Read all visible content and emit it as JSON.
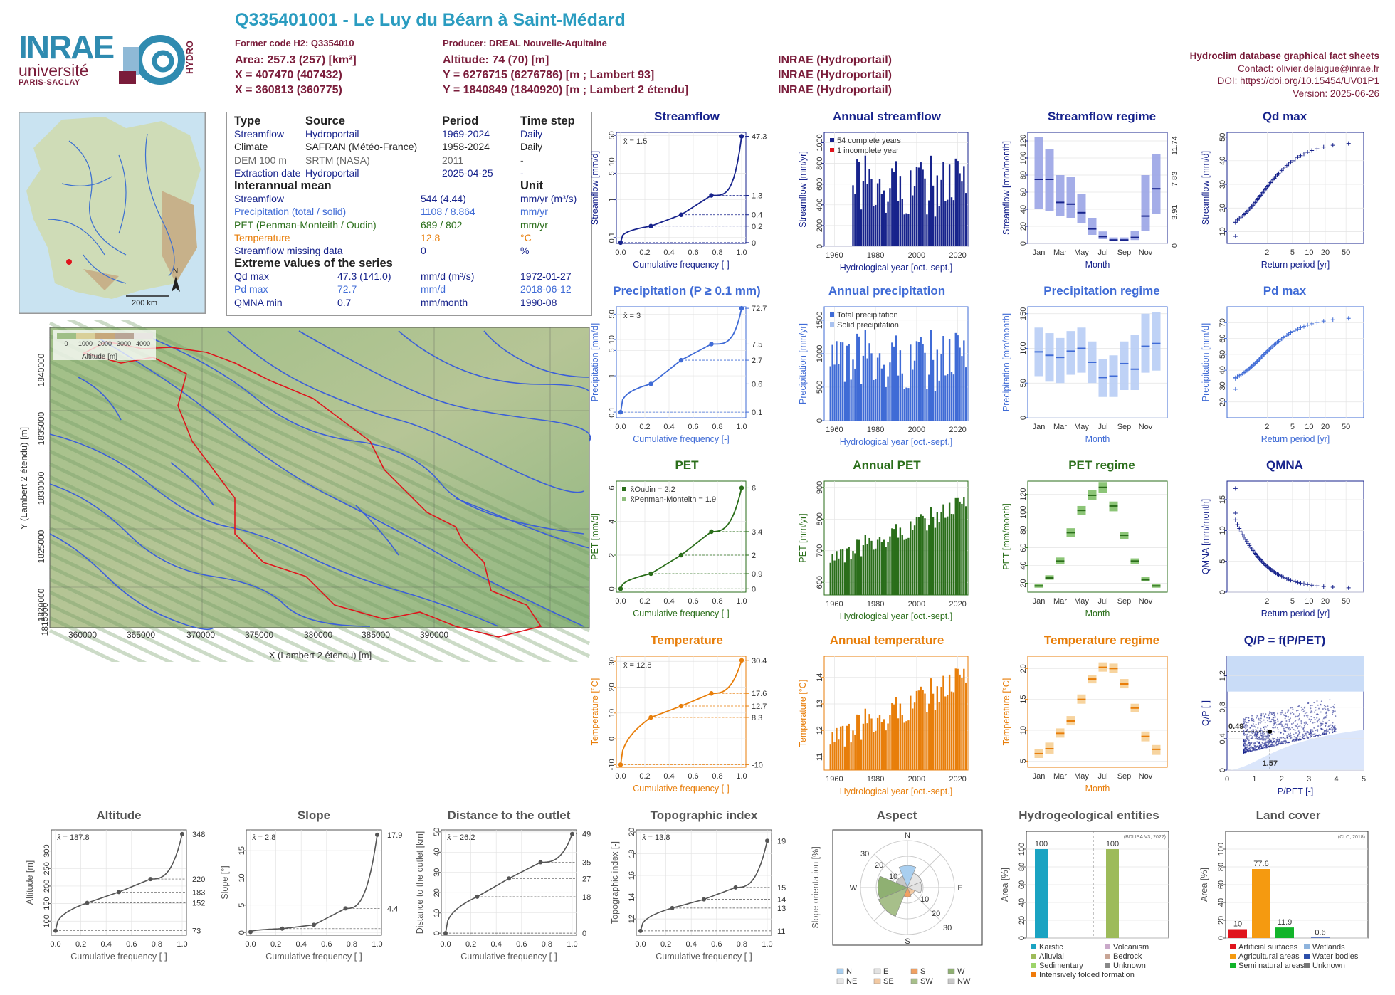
{
  "header": {
    "title": "Q335401001 - Le Luy du Béarn à Saint-Médard",
    "former_code": "Former code H2: Q3354010",
    "producer": "Producer: DREAL Nouvelle-Aquitaine",
    "area": "Area: 257.3 (257) [km²]",
    "x93": "X = 407470 (407432)",
    "x2e": "X = 360813 (360775)",
    "altitude": "Altitude: 74 (70) [m]",
    "y93": "Y = 6276715 (6276786) [m ; Lambert 93]",
    "y2e": "Y = 1840849 (1840920) [m ; Lambert 2 étendu]",
    "src1": "INRAE (Hydroportail)",
    "src2": "INRAE (Hydroportail)",
    "src3": "INRAE (Hydroportail)",
    "right1": "Hydroclim database graphical fact sheets",
    "right2": "Contact: olivier.delaigue@inrae.fr",
    "right3": "DOI: https://doi.org/10.15454/UV01P1",
    "right4": "Version: 2025-06-26"
  },
  "logo": {
    "inrae": "INRAE",
    "univ": "université",
    "ps": "PARIS-SACLAY",
    "hydro": "HYDRO"
  },
  "info_table": {
    "head": [
      "Type",
      "Source",
      "Period",
      "Time step"
    ],
    "rows": [
      [
        "Streamflow",
        "Hydroportail",
        "1969-2024",
        "Daily"
      ],
      [
        "Climate",
        "SAFRAN (Météo-France)",
        "1958-2024",
        "Daily"
      ],
      [
        "DEM 100 m",
        "SRTM (NASA)",
        "2011",
        "-"
      ],
      [
        "Extraction date",
        "Hydroportail",
        "2025-04-25",
        "-"
      ]
    ],
    "mean_head": "Interannual mean",
    "unit_head": "Unit",
    "means": [
      [
        "Streamflow",
        "544 (4.44)",
        "mm/yr (m³/s)"
      ],
      [
        "Precipitation (total / solid)",
        "1108 / 8.864",
        "mm/yr"
      ],
      [
        "PET (Penman-Monteith / Oudin)",
        "689 / 802",
        "mm/yr"
      ],
      [
        "Temperature",
        "12.8",
        "°C"
      ],
      [
        "Streamflow missing data",
        "0",
        "%"
      ]
    ],
    "extreme_head": "Extreme values of the series",
    "extremes": [
      [
        "Qd max",
        "47.3 (141.0)",
        "mm/d (m³/s)",
        "1972-01-27"
      ],
      [
        "Pd max",
        "72.7",
        "mm/d",
        "2018-06-12"
      ],
      [
        "QMNA min",
        "0.7",
        "mm/month",
        "1990-08"
      ]
    ]
  },
  "map": {
    "scale": "200 km",
    "north": "N",
    "legend_title": "Altitude [m]",
    "legend_ticks": [
      "0",
      "1000",
      "2000",
      "3000",
      "4000"
    ],
    "xlabel": "X (Lambert 2 étendu) [m]",
    "ylabel": "Y (Lambert 2 étendu) [m]",
    "xticks": [
      "360000",
      "365000",
      "370000",
      "375000",
      "380000",
      "385000",
      "390000"
    ],
    "yticks": [
      "1840000",
      "1835000",
      "1830000",
      "1825000",
      "1820000",
      "1815000"
    ]
  },
  "chart_data": [
    {
      "id": "q_cdf",
      "type": "line",
      "title": "Streamflow",
      "xlabel": "Cumulative frequency [-]",
      "ylabel": "Streamflow [mm/d]",
      "color": "#17238c",
      "log": true,
      "ylim": [
        0.07,
        60
      ],
      "yticks": [
        0.1,
        1,
        5,
        10,
        50
      ],
      "right_labels": [
        47.3,
        1.3,
        0.4,
        0.2,
        0.0
      ],
      "marks": [
        [
          0,
          0.0
        ],
        [
          0.25,
          0.2
        ],
        [
          0.5,
          0.4
        ],
        [
          0.75,
          1.3
        ],
        [
          1.0,
          47.3
        ]
      ],
      "mean_label": "x̄ = 1.5"
    },
    {
      "id": "q_annual",
      "type": "bar",
      "title": "Annual streamflow",
      "xlabel": "Hydrological year [oct.-sept.]",
      "ylabel": "Streamflow [mm/yr]",
      "color": "#17238c",
      "ylim": [
        0,
        1100
      ],
      "yticks": [
        0,
        200,
        400,
        600,
        800,
        1000
      ],
      "xticks": [
        1960,
        1980,
        2000,
        2020
      ],
      "start": 1969,
      "end": 2024,
      "legend": [
        "54 complete years",
        "1 incomplete year"
      ]
    },
    {
      "id": "q_regime",
      "type": "box",
      "title": "Streamflow regime",
      "xlabel": "Month",
      "ylabel": "Streamflow [mm/month]",
      "color": "#17238c",
      "ylim": [
        0,
        130
      ],
      "yticks": [
        0,
        20,
        40,
        60,
        80,
        100,
        120
      ],
      "right_labels": [
        0,
        3.91,
        7.83,
        11.74
      ],
      "months": [
        "Jan",
        "Mar",
        "May",
        "Jul",
        "Sep",
        "Nov"
      ],
      "medians": [
        75,
        75,
        48,
        46,
        36,
        17,
        8,
        4,
        4,
        7,
        32,
        64
      ],
      "q1": [
        40,
        38,
        32,
        30,
        24,
        10,
        5,
        3,
        3,
        4,
        15,
        35
      ],
      "q3": [
        125,
        110,
        80,
        78,
        58,
        30,
        14,
        7,
        7,
        15,
        80,
        105
      ]
    },
    {
      "id": "qd_max",
      "type": "scatter",
      "title": "Qd max",
      "xlabel": "Return period [yr]",
      "ylabel": "Streamflow [mm/d]",
      "color": "#17238c",
      "ylim": [
        5,
        52
      ],
      "yticks": [
        10,
        20,
        30,
        40,
        50
      ],
      "xticks": [
        2,
        5,
        10,
        20,
        50
      ],
      "range": [
        8,
        47.3
      ]
    },
    {
      "id": "p_cdf",
      "type": "line",
      "title": "Precipitation (P ≥ 0.1 mm)",
      "xlabel": "Cumulative frequency [-]",
      "ylabel": "Precipitation [mm/d]",
      "color": "#3f6bd6",
      "log": true,
      "ylim": [
        0.07,
        80
      ],
      "yticks": [
        0.1,
        1,
        5,
        10,
        50
      ],
      "right_labels": [
        72.7,
        7.5,
        2.7,
        0.6,
        0.1
      ],
      "marks": [
        [
          0,
          0.1
        ],
        [
          0.25,
          0.6
        ],
        [
          0.5,
          2.7
        ],
        [
          0.75,
          7.5
        ],
        [
          1.0,
          72.7
        ]
      ],
      "mean_label": "x̄ = 3"
    },
    {
      "id": "p_annual",
      "type": "bar",
      "title": "Annual precipitation",
      "xlabel": "Hydrological year [oct.-sept.]",
      "ylabel": "Precipitation [mm/yr]",
      "color": "#3f6bd6",
      "ylim": [
        0,
        1700
      ],
      "yticks": [
        0,
        500,
        1000,
        1500
      ],
      "xticks": [
        1960,
        1980,
        2000,
        2020
      ],
      "start": 1958,
      "end": 2024,
      "legend": [
        "Total precipitation",
        "Solid precipitation"
      ]
    },
    {
      "id": "p_regime",
      "type": "box",
      "title": "Precipitation regime",
      "xlabel": "Month",
      "ylabel": "Precipitation [mm/month]",
      "color": "#3f6bd6",
      "ylim": [
        0,
        160
      ],
      "yticks": [
        0,
        50,
        100,
        150
      ],
      "months": [
        "Jan",
        "Mar",
        "May",
        "Jul",
        "Sep",
        "Nov"
      ],
      "medians": [
        95,
        90,
        87,
        96,
        100,
        80,
        58,
        60,
        78,
        70,
        103,
        107
      ],
      "q1": [
        60,
        52,
        50,
        62,
        65,
        50,
        30,
        30,
        40,
        40,
        65,
        68
      ],
      "q3": [
        130,
        122,
        115,
        125,
        130,
        110,
        85,
        90,
        110,
        120,
        150,
        152
      ]
    },
    {
      "id": "pd_max",
      "type": "scatter",
      "title": "Pd max",
      "xlabel": "Return period [yr]",
      "ylabel": "Precipitation [mm/d]",
      "color": "#3f6bd6",
      "ylim": [
        10,
        80
      ],
      "yticks": [
        20,
        30,
        40,
        50,
        60,
        70
      ],
      "xticks": [
        2,
        5,
        10,
        20,
        50
      ],
      "range": [
        28,
        72.7
      ]
    },
    {
      "id": "pet_cdf",
      "type": "line",
      "title": "PET",
      "xlabel": "Cumulative frequency [-]",
      "ylabel": "PET [mm/d]",
      "color": "#2a6e1a",
      "log": false,
      "ylim": [
        -0.2,
        6.4
      ],
      "yticks": [
        0,
        2,
        4,
        6
      ],
      "right_labels": [
        6.0,
        3.4,
        2.0,
        0.9,
        0.0
      ],
      "marks": [
        [
          0,
          0.0
        ],
        [
          0.25,
          0.9
        ],
        [
          0.5,
          2.0
        ],
        [
          0.75,
          3.4
        ],
        [
          1.0,
          6.0
        ]
      ],
      "legend": [
        "x̄Oudin = 2.2",
        "x̄Penman-Monteith = 1.9"
      ]
    },
    {
      "id": "pet_annual",
      "type": "bar",
      "title": "Annual PET",
      "xlabel": "Hydrological year [oct.-sept.]",
      "ylabel": "PET [mm/yr]",
      "color": "#2a6e1a",
      "ylim": [
        560,
        920
      ],
      "yticks": [
        600,
        700,
        800,
        900
      ],
      "xticks": [
        1960,
        1980,
        2000,
        2020
      ],
      "start": 1958,
      "end": 2024
    },
    {
      "id": "pet_regime",
      "type": "box",
      "title": "PET regime",
      "xlabel": "Month",
      "ylabel": "PET [mm/month]",
      "color": "#2a6e1a",
      "ylim": [
        10,
        135
      ],
      "yticks": [
        20,
        40,
        60,
        80,
        100,
        120
      ],
      "months": [
        "Jan",
        "Mar",
        "May",
        "Jul",
        "Sep",
        "Nov"
      ],
      "medians": [
        17,
        26,
        45,
        77,
        102,
        119,
        128,
        107,
        74,
        45,
        24,
        17
      ],
      "q1": [
        15,
        24,
        42,
        72,
        97,
        114,
        122,
        101,
        70,
        42,
        22,
        15
      ],
      "q3": [
        19,
        29,
        49,
        82,
        107,
        125,
        134,
        112,
        78,
        48,
        27,
        19
      ]
    },
    {
      "id": "qmna",
      "type": "scatter",
      "title": "QMNA",
      "xlabel": "Return period [yr]",
      "ylabel": "QMNA [mm/month]",
      "color": "#17238c",
      "ylim": [
        0,
        18
      ],
      "yticks": [
        0,
        5,
        10,
        15
      ],
      "xticks": [
        2,
        5,
        10,
        20,
        50
      ],
      "range": [
        16.8,
        0.7
      ]
    },
    {
      "id": "t_cdf",
      "type": "line",
      "title": "Temperature",
      "xlabel": "Cumulative frequency [-]",
      "ylabel": "Temperature [°C]",
      "color": "#e87e0a",
      "log": false,
      "ylim": [
        -11,
        32
      ],
      "yticks": [
        -10,
        0,
        10,
        20,
        30
      ],
      "right_labels": [
        30.4,
        17.6,
        12.7,
        8.3,
        -10.0
      ],
      "marks": [
        [
          0,
          -10.0
        ],
        [
          0.25,
          8.3
        ],
        [
          0.5,
          12.7
        ],
        [
          0.75,
          17.6
        ],
        [
          1.0,
          30.4
        ]
      ],
      "mean_label": "x̄ = 12.8"
    },
    {
      "id": "t_annual",
      "type": "bar",
      "title": "Annual temperature",
      "xlabel": "Hydrological year [oct.-sept.]",
      "ylabel": "Temperature [°C]",
      "color": "#e87e0a",
      "ylim": [
        10.5,
        14.8
      ],
      "yticks": [
        11,
        12,
        13,
        14
      ],
      "xticks": [
        1960,
        1980,
        2000,
        2020
      ],
      "start": 1958,
      "end": 2024
    },
    {
      "id": "t_regime",
      "type": "box",
      "title": "Temperature regime",
      "xlabel": "Month",
      "ylabel": "Temperature [°C]",
      "color": "#e87e0a",
      "ylim": [
        4,
        22
      ],
      "yticks": [
        5,
        10,
        15,
        20
      ],
      "months": [
        "Jan",
        "Mar",
        "May",
        "Jul",
        "Sep",
        "Nov"
      ],
      "medians": [
        6.2,
        7.0,
        9.5,
        11.5,
        15.0,
        18.3,
        20.2,
        20.0,
        17.5,
        13.6,
        9.0,
        6.9
      ],
      "q1": [
        5.5,
        6.2,
        8.8,
        10.8,
        14.3,
        17.6,
        19.5,
        19.3,
        16.8,
        13.0,
        8.2,
        6.0
      ],
      "q3": [
        7.0,
        8.0,
        10.3,
        12.3,
        15.8,
        19.0,
        21.0,
        20.8,
        18.3,
        14.3,
        9.8,
        7.6
      ]
    },
    {
      "id": "budyko",
      "type": "scatter",
      "title": "Q/P = f(P/PET)",
      "xlabel": "P/PET [-]",
      "ylabel": "Q/P [-]",
      "color": "#17238c",
      "ylim": [
        0,
        1.45
      ],
      "yticks": [
        0,
        0.4,
        0.8,
        1.2
      ],
      "xlim": [
        0,
        5
      ],
      "xticks": [
        0,
        1,
        2,
        3,
        4,
        5
      ],
      "point": [
        1.57,
        0.49
      ]
    },
    {
      "id": "alt_cdf",
      "type": "line",
      "title": "Altitude",
      "xlabel": "Cumulative frequency [-]",
      "ylabel": "Altitude [m]",
      "color": "#555555",
      "log": false,
      "ylim": [
        60,
        360
      ],
      "yticks": [
        100,
        150,
        200,
        250,
        300
      ],
      "right_labels": [
        348,
        220,
        183,
        152,
        73
      ],
      "marks": [
        [
          0,
          73
        ],
        [
          0.25,
          152
        ],
        [
          0.5,
          183
        ],
        [
          0.75,
          220
        ],
        [
          1.0,
          348
        ]
      ],
      "mean_label": "x̄ = 187.8"
    },
    {
      "id": "slope_cdf",
      "type": "line",
      "title": "Slope",
      "xlabel": "Cumulative frequency [-]",
      "ylabel": "Slope [°]",
      "color": "#555555",
      "log": false,
      "ylim": [
        -0.5,
        18.8
      ],
      "yticks": [
        0,
        5,
        10,
        15
      ],
      "right_labels": [
        17.9,
        4.4
      ],
      "marks": [
        [
          0,
          0.1
        ],
        [
          0.25,
          0.7
        ],
        [
          0.5,
          1.4
        ],
        [
          0.75,
          4.4
        ],
        [
          1.0,
          17.9
        ]
      ],
      "mean_label": "x̄ = 2.8"
    },
    {
      "id": "dist_cdf",
      "type": "line",
      "title": "Distance to the outlet",
      "xlabel": "Cumulative frequency [-]",
      "ylabel": "Distance to the outlet [km]",
      "color": "#555555",
      "log": false,
      "ylim": [
        -1,
        51
      ],
      "yticks": [
        0,
        10,
        20,
        30,
        40,
        50
      ],
      "right_labels": [
        49,
        35,
        27,
        18,
        0
      ],
      "marks": [
        [
          0,
          0
        ],
        [
          0.25,
          18
        ],
        [
          0.5,
          27
        ],
        [
          0.75,
          35
        ],
        [
          1.0,
          49
        ]
      ],
      "mean_label": "x̄ = 26.2"
    },
    {
      "id": "topo_cdf",
      "type": "line",
      "title": "Topographic index",
      "xlabel": "Cumulative frequency [-]",
      "ylabel": "Topographic index [-]",
      "color": "#555555",
      "log": false,
      "ylim": [
        10.5,
        20.2
      ],
      "yticks": [
        12,
        14,
        16,
        18,
        20
      ],
      "right_labels": [
        19,
        15,
        14,
        13,
        11
      ],
      "marks": [
        [
          0,
          10.9
        ],
        [
          0.25,
          13.0
        ],
        [
          0.5,
          13.8
        ],
        [
          0.75,
          14.9
        ],
        [
          1.0,
          19.2
        ]
      ],
      "mean_label": "x̄ = 13.8"
    },
    {
      "id": "aspect",
      "type": "pie",
      "title": "Aspect",
      "ylabel": "Slope orientation [%]",
      "directions": [
        "N",
        "NE",
        "E",
        "SE",
        "S",
        "SW",
        "W",
        "NW"
      ],
      "values": [
        14,
        10,
        9,
        5,
        6,
        20,
        19,
        8
      ],
      "ring_labels": [
        "10",
        "20",
        "30"
      ],
      "legend": [
        "N",
        "NE",
        "E",
        "SE",
        "S",
        "SW",
        "W",
        "NW"
      ]
    },
    {
      "id": "hydrogeo",
      "type": "bar",
      "title": "Hydrogeological entities",
      "ylabel": "Area [%]",
      "note": "(BDLISA V3, 2022)",
      "ylim": [
        0,
        120
      ],
      "yticks": [
        0,
        20,
        40,
        60,
        80,
        100
      ],
      "bars": [
        {
          "label": "Karstic",
          "value": 100,
          "color": "#1aa3c2"
        },
        {
          "label": "Alluvial",
          "value": 100,
          "color": "#9dbb5a"
        }
      ],
      "legend": [
        "Karstic",
        "Alluvial",
        "Sedimentary",
        "Intensively folded formation",
        "Volcanism",
        "Bedrock",
        "Unknown"
      ]
    },
    {
      "id": "landcover",
      "type": "bar",
      "title": "Land cover",
      "ylabel": "Area [%]",
      "note": "(CLC, 2018)",
      "ylim": [
        0,
        120
      ],
      "yticks": [
        0,
        20,
        40,
        60,
        80,
        100
      ],
      "bars": [
        {
          "label": "Artificial surfaces",
          "value": 10,
          "color": "#e0141c"
        },
        {
          "label": "Agricultural areas",
          "value": 77.6,
          "color": "#f59a10"
        },
        {
          "label": "Semi natural areas",
          "value": 11.9,
          "color": "#12b42a"
        },
        {
          "label": "Wetlands",
          "value": 0,
          "color": "#8fb4dd"
        },
        {
          "label": "Water bodies",
          "value": 0.6,
          "color": "#2b4ea8"
        },
        {
          "label": "Unknown",
          "value": 0,
          "color": "#777777"
        }
      ],
      "legend": [
        "Artificial surfaces",
        "Agricultural areas",
        "Semi natural areas",
        "Wetlands",
        "Water bodies",
        "Unknown"
      ]
    }
  ]
}
